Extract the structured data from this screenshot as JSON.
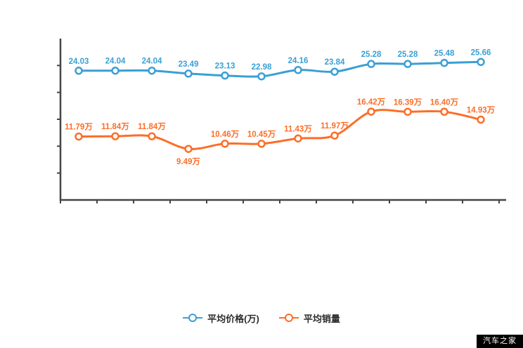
{
  "watermark": {
    "text": "汽车之家",
    "bg": "#000000",
    "fg": "#ffffff"
  },
  "legend": [
    {
      "label": "平均价格(万)",
      "color": "#3a9fd5"
    },
    {
      "label": "平均销量",
      "color": "#fd6e27"
    }
  ],
  "chart_data": {
    "type": "line",
    "title": "",
    "xlabel": "",
    "ylabel": "",
    "x_labels": [
      "",
      "",
      "",
      "",
      "",
      "",
      "",
      "",
      "",
      "",
      "",
      ""
    ],
    "ylim": [
      0,
      30
    ],
    "grid": false,
    "legend_position": "bottom",
    "axis_color": "#454545",
    "series": [
      {
        "name": "平均价格(万)",
        "color": "#3a9fd5",
        "values": [
          24.03,
          24.04,
          24.04,
          23.49,
          23.13,
          22.98,
          24.16,
          23.84,
          25.28,
          25.28,
          25.48,
          25.66
        ],
        "labels": [
          "24.03",
          "24.04",
          "24.04",
          "23.49",
          "23.13",
          "22.98",
          "24.16",
          "23.84",
          "25.28",
          "25.28",
          "25.48",
          "25.66"
        ],
        "label_below": []
      },
      {
        "name": "平均销量",
        "color": "#fd6e27",
        "values": [
          11.79,
          11.84,
          11.84,
          9.49,
          10.46,
          10.45,
          11.43,
          11.97,
          16.42,
          16.39,
          16.4,
          14.93
        ],
        "labels": [
          "11.79万",
          "11.84万",
          "11.84万",
          "9.49万",
          "10.46万",
          "10.45万",
          "11.43万",
          "11.97万",
          "16.42万",
          "16.39万",
          "16.40万",
          "14.93万"
        ],
        "label_below": [
          3
        ]
      }
    ]
  }
}
